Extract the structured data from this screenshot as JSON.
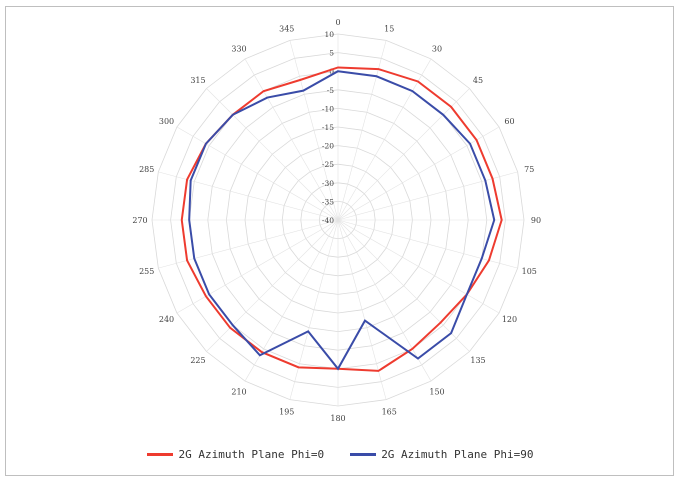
{
  "chart_data": {
    "type": "radar",
    "title": "",
    "radial_ticks": [
      "10",
      "5",
      "0",
      "-5",
      "-10",
      "-15",
      "-20",
      "-25",
      "-30",
      "-35",
      "-40"
    ],
    "rlim": [
      -40,
      10
    ],
    "angle_labels": [
      "0",
      "15",
      "30",
      "45",
      "60",
      "75",
      "90",
      "105",
      "120",
      "135",
      "150",
      "165",
      "180",
      "195",
      "210",
      "225",
      "240",
      "255",
      "270",
      "285",
      "300",
      "315",
      "330",
      "345"
    ],
    "angles": [
      0,
      15,
      30,
      45,
      60,
      75,
      90,
      105,
      120,
      135,
      150,
      165,
      180,
      195,
      210,
      225,
      240,
      255,
      270,
      285,
      300,
      315,
      330,
      345
    ],
    "series": [
      {
        "name": "2G Azimuth Plane Phi=0",
        "color": "#ee3b2f",
        "values": [
          1,
          2,
          3,
          3,
          3,
          3,
          4,
          2,
          0,
          -1,
          0,
          2,
          0,
          1,
          1,
          1,
          1,
          2,
          2,
          2,
          1,
          0,
          0,
          -1
        ]
      },
      {
        "name": "2G Azimuth Plane Phi=90",
        "color": "#3a4ca8",
        "values": [
          0,
          0,
          0,
          0,
          1,
          1,
          2,
          0,
          0,
          3,
          3,
          -12,
          0,
          -9,
          2,
          0,
          0,
          0,
          0,
          1,
          1,
          0,
          -2,
          -4
        ]
      }
    ]
  }
}
